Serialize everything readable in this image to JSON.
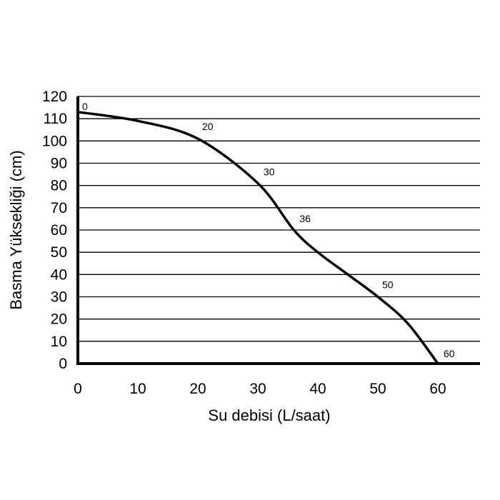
{
  "chart_data": {
    "type": "line",
    "title": "",
    "xlabel": "Su debisi (L/saat)",
    "ylabel": "Basma Yüksekliği (cm)",
    "xlim": [
      0,
      67
    ],
    "ylim": [
      0,
      120
    ],
    "x_ticks": [
      "0",
      "10",
      "20",
      "30",
      "40",
      "50",
      "60"
    ],
    "y_ticks": [
      "0",
      "10",
      "20",
      "30",
      "40",
      "50",
      "60",
      "70",
      "80",
      "90",
      "100",
      "110",
      "120"
    ],
    "grid": "horizontal",
    "legend": "none",
    "series": [
      {
        "x": [
          0,
          10,
          20,
          30,
          36,
          40,
          45,
          50,
          55,
          60
        ],
        "y": [
          113,
          109,
          101,
          81,
          60,
          50,
          40,
          30,
          18,
          0
        ]
      }
    ],
    "point_labels": [
      {
        "text": "0",
        "x": 0,
        "y": 113
      },
      {
        "text": "20",
        "x": 20,
        "y": 101
      },
      {
        "text": "30",
        "x": 30,
        "y": 81
      },
      {
        "text": "36",
        "x": 36,
        "y": 60
      },
      {
        "text": "50",
        "x": 50,
        "y": 30
      },
      {
        "text": "60",
        "x": 60,
        "y": 0
      }
    ]
  }
}
